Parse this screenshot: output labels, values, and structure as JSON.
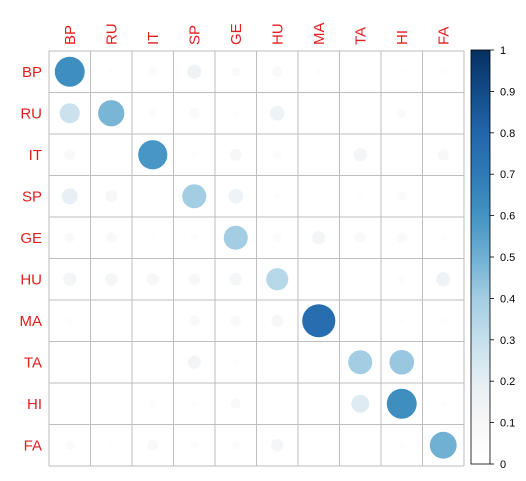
{
  "chart_data": {
    "type": "heatmap",
    "subtype": "correlation-circle-matrix",
    "variables": [
      "BP",
      "RU",
      "IT",
      "SP",
      "GE",
      "HU",
      "MA",
      "TA",
      "HI",
      "FA"
    ],
    "values": [
      [
        0.62,
        0.03,
        0.06,
        0.14,
        0.06,
        0.07,
        0.03,
        0.0,
        0.02,
        0.03
      ],
      [
        0.28,
        0.48,
        0.05,
        0.08,
        0.02,
        0.15,
        0.0,
        0.01,
        0.06,
        0.0
      ],
      [
        0.08,
        0.0,
        0.59,
        0.02,
        0.1,
        0.05,
        0.0,
        0.12,
        0.0,
        0.09
      ],
      [
        0.18,
        0.1,
        0.01,
        0.4,
        0.15,
        0.02,
        0.0,
        0.02,
        0.06,
        0.0
      ],
      [
        0.07,
        0.08,
        0.02,
        0.04,
        0.4,
        0.05,
        0.12,
        0.08,
        0.07,
        0.02
      ],
      [
        0.12,
        0.11,
        0.1,
        0.09,
        0.11,
        0.34,
        0.01,
        0.01,
        0.04,
        0.14
      ],
      [
        0.03,
        0.01,
        0.0,
        0.08,
        0.08,
        0.1,
        0.76,
        0.0,
        0.02,
        0.03
      ],
      [
        0.0,
        0.0,
        0.01,
        0.12,
        0.03,
        0.01,
        0.0,
        0.4,
        0.42,
        0.01
      ],
      [
        0.01,
        0.0,
        0.04,
        0.03,
        0.07,
        0.01,
        0.0,
        0.22,
        0.62,
        0.02
      ],
      [
        0.06,
        0.02,
        0.08,
        0.04,
        0.05,
        0.11,
        0.01,
        0.01,
        0.03,
        0.5
      ]
    ],
    "color_scale": {
      "min": 0,
      "max": 1,
      "low_color": "#ffffff",
      "high_color": "#053061",
      "ticks": [
        "0",
        "0.1",
        "0.2",
        "0.3",
        "0.4",
        "0.5",
        "0.6",
        "0.7",
        "0.8",
        "0.9",
        "1"
      ]
    },
    "label_color": "#e01f1f",
    "grid_color": "#bebebe",
    "legend_position": "right",
    "grid": true
  }
}
